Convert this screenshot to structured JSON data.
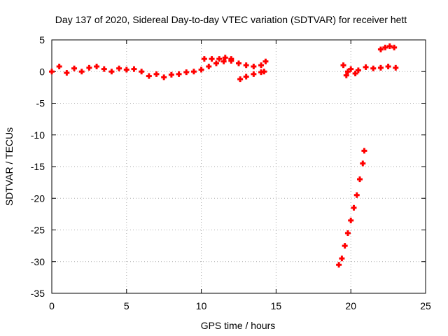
{
  "chart_data": {
    "type": "scatter",
    "title": "Day 137 of 2020, Sidereal Day-to-day VTEC variation (SDTVAR) for receiver hett",
    "xlabel": "GPS time / hours",
    "ylabel": "SDTVAR / TECUs",
    "xlim": [
      0,
      25
    ],
    "ylim": [
      -35,
      5
    ],
    "xticks": [
      0,
      5,
      10,
      15,
      20,
      25
    ],
    "yticks": [
      5,
      0,
      -5,
      -10,
      -15,
      -20,
      -25,
      -30,
      -35
    ],
    "grid": true,
    "marker_color": "#ff0000",
    "series": [
      {
        "values": [
          {
            "x": 0.0,
            "y": 0.0
          },
          {
            "x": 0.5,
            "y": 0.8
          },
          {
            "x": 1.0,
            "y": -0.2
          },
          {
            "x": 1.5,
            "y": 0.5
          },
          {
            "x": 2.0,
            "y": 0.0
          },
          {
            "x": 2.5,
            "y": 0.6
          },
          {
            "x": 3.0,
            "y": 0.8
          },
          {
            "x": 3.5,
            "y": 0.4
          },
          {
            "x": 4.0,
            "y": 0.0
          },
          {
            "x": 4.5,
            "y": 0.5
          },
          {
            "x": 5.0,
            "y": 0.3
          },
          {
            "x": 5.5,
            "y": 0.4
          },
          {
            "x": 6.0,
            "y": 0.0
          },
          {
            "x": 6.5,
            "y": -0.7
          },
          {
            "x": 7.0,
            "y": -0.4
          },
          {
            "x": 7.5,
            "y": -0.9
          },
          {
            "x": 8.0,
            "y": -0.5
          },
          {
            "x": 8.5,
            "y": -0.4
          },
          {
            "x": 9.0,
            "y": -0.1
          },
          {
            "x": 9.5,
            "y": 0.0
          },
          {
            "x": 10.0,
            "y": 0.3
          },
          {
            "x": 10.5,
            "y": 0.8
          },
          {
            "x": 11.0,
            "y": 1.3
          },
          {
            "x": 11.5,
            "y": 1.6
          },
          {
            "x": 12.0,
            "y": 1.7
          },
          {
            "x": 12.5,
            "y": 1.3
          },
          {
            "x": 13.0,
            "y": 1.0
          },
          {
            "x": 13.5,
            "y": 0.8
          },
          {
            "x": 14.0,
            "y": 1.0
          },
          {
            "x": 14.3,
            "y": 1.6
          },
          {
            "x": 10.2,
            "y": 2.0
          },
          {
            "x": 10.7,
            "y": 2.0
          },
          {
            "x": 11.2,
            "y": 2.0
          },
          {
            "x": 11.6,
            "y": 2.2
          },
          {
            "x": 12.0,
            "y": 2.0
          },
          {
            "x": 12.6,
            "y": -1.2
          },
          {
            "x": 13.0,
            "y": -0.8
          },
          {
            "x": 13.5,
            "y": -0.4
          },
          {
            "x": 14.0,
            "y": -0.1
          },
          {
            "x": 14.2,
            "y": 0.0
          },
          {
            "x": 19.5,
            "y": 1.0
          },
          {
            "x": 19.8,
            "y": 0.0
          },
          {
            "x": 20.0,
            "y": 0.4
          },
          {
            "x": 20.5,
            "y": 0.2
          },
          {
            "x": 21.0,
            "y": 0.7
          },
          {
            "x": 21.5,
            "y": 0.5
          },
          {
            "x": 22.0,
            "y": 0.6
          },
          {
            "x": 22.5,
            "y": 0.8
          },
          {
            "x": 23.0,
            "y": 0.6
          },
          {
            "x": 19.7,
            "y": -0.6
          },
          {
            "x": 20.3,
            "y": -0.3
          },
          {
            "x": 22.0,
            "y": 3.5
          },
          {
            "x": 22.3,
            "y": 3.8
          },
          {
            "x": 22.6,
            "y": 4.0
          },
          {
            "x": 22.9,
            "y": 3.8
          },
          {
            "x": 19.2,
            "y": -30.5
          },
          {
            "x": 19.4,
            "y": -29.5
          },
          {
            "x": 19.6,
            "y": -27.5
          },
          {
            "x": 19.8,
            "y": -25.5
          },
          {
            "x": 20.0,
            "y": -23.5
          },
          {
            "x": 20.2,
            "y": -21.5
          },
          {
            "x": 20.4,
            "y": -19.5
          },
          {
            "x": 20.6,
            "y": -17.0
          },
          {
            "x": 20.8,
            "y": -14.5
          },
          {
            "x": 20.9,
            "y": -12.5
          }
        ]
      }
    ]
  }
}
